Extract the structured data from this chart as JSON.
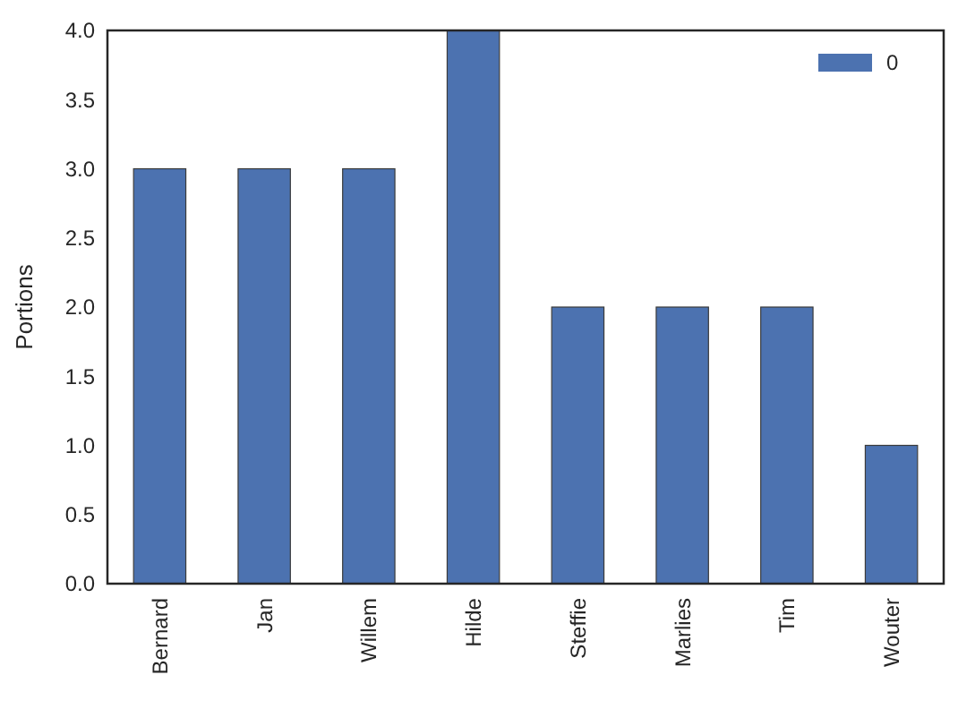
{
  "chart_data": {
    "type": "bar",
    "ylabel": "Portions",
    "categories": [
      "Bernard",
      "Jan",
      "Willem",
      "Hilde",
      "Steffie",
      "Marlies",
      "Tim",
      "Wouter"
    ],
    "series": [
      {
        "name": "0",
        "color": "#4c72b0",
        "values": [
          3,
          3,
          3,
          4,
          2,
          2,
          2,
          1
        ]
      }
    ],
    "ylim": [
      0,
      4
    ],
    "yticks": [
      {
        "value": 0,
        "label": "0.0"
      },
      {
        "value": 0.5,
        "label": "0.5"
      },
      {
        "value": 1,
        "label": "1.0"
      },
      {
        "value": 1.5,
        "label": "1.5"
      },
      {
        "value": 2,
        "label": "2.0"
      },
      {
        "value": 2.5,
        "label": "2.5"
      },
      {
        "value": 3,
        "label": "3.0"
      },
      {
        "value": 3.5,
        "label": "3.5"
      },
      {
        "value": 4,
        "label": "4.0"
      }
    ],
    "legend": "top right",
    "grid": false
  }
}
